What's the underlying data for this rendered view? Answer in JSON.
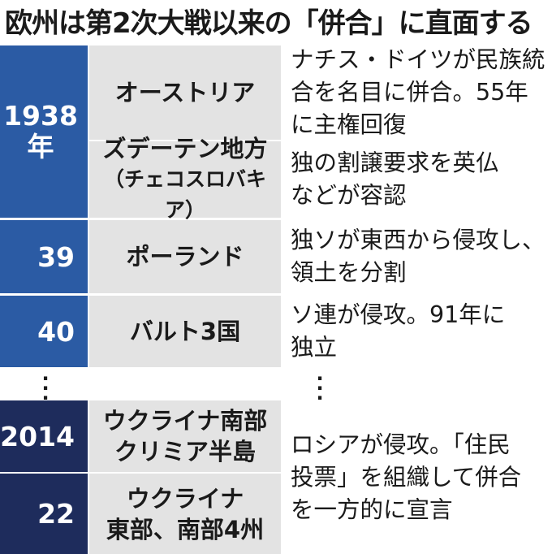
{
  "title": "欧州は第2次大戦以来の「併合」に直面する",
  "colors": {
    "blue": "#2b5ba4",
    "navy": "#1e2c5c",
    "gray": "#e3e3e3"
  },
  "rows": [
    {
      "year": [
        "1938",
        "年"
      ],
      "region": "オーストリア",
      "desc": "ナチス・ドイツが民族統\n合を名目に併合。55年\nに主権回復"
    },
    {
      "region": "ズデーテン地方",
      "region_sub": "（チェコスロバキア）",
      "desc": "独の割譲要求を英仏\nなどが容認"
    },
    {
      "year": "39",
      "region": "ポーランド",
      "desc": "独ソが東西から侵攻し、\n領土を分割"
    },
    {
      "year": "40",
      "region": "バルト3国",
      "desc": "ソ連が侵攻。91年に\n独立"
    },
    {
      "year": "2014",
      "region": "ウクライナ南部\nクリミア半島"
    },
    {
      "year": "22",
      "region": "ウクライナ\n東部、南部4州"
    }
  ],
  "shared_desc": "ロシアが侵攻。「住民\n投票」を組織して併合\nを一方的に宣言"
}
